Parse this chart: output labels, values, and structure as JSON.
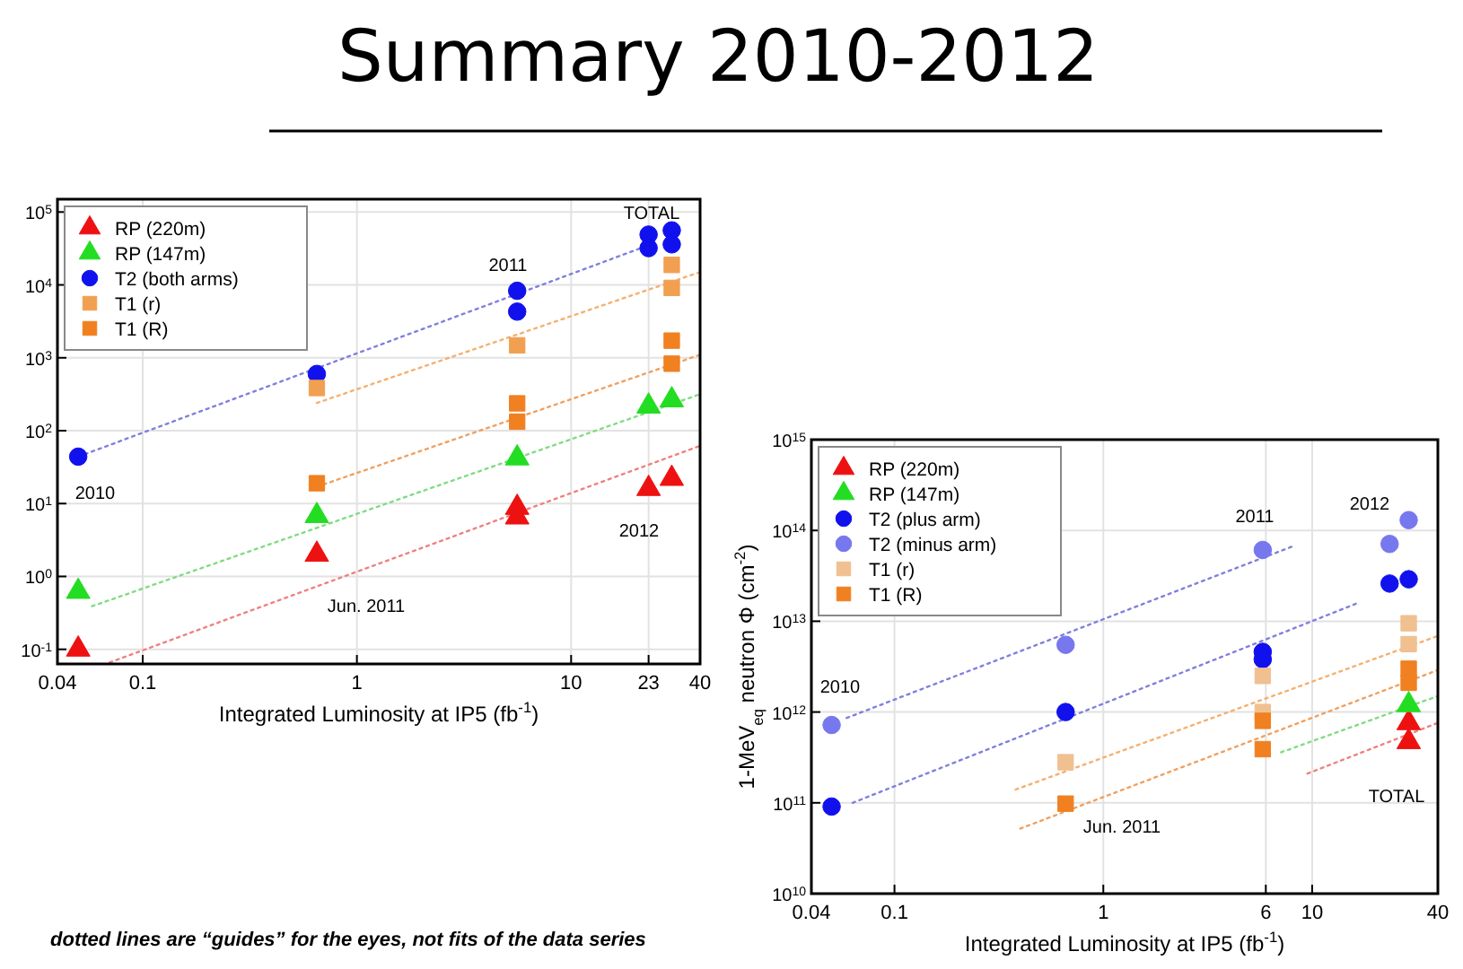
{
  "chart_data": [
    {
      "type": "scatter",
      "title": "Summary 2010-2012",
      "xlabel": "Integrated Luminosity at IP5 (fb$^{-1}$)",
      "log": "xy",
      "grid": true,
      "legend": "top left",
      "xlim": [
        0.04,
        40
      ],
      "xticks": [
        0.04,
        0.1,
        1,
        10,
        23,
        40
      ],
      "ylim": [
        0.063,
        150000
      ],
      "yticks": [
        {
          "value": 0.1,
          "label": "10$^{-1}$"
        },
        {
          "value": 1,
          "label": "10$^{0}$"
        },
        {
          "value": 10,
          "label": "10$^{1}$"
        },
        {
          "value": 100,
          "label": "10$^{2}$"
        },
        {
          "value": 1000,
          "label": "10$^{3}$"
        },
        {
          "value": 10000,
          "label": "10$^{4}$"
        },
        {
          "value": 100000,
          "label": "10$^{5}$"
        }
      ],
      "series": [
        {
          "name": "RP (220m)",
          "type": "scatter",
          "marker": "triangle",
          "color": "#ee1111",
          "x": [
            0.05,
            0.65,
            5.6,
            5.6,
            23,
            29.5
          ],
          "values": [
            0.1,
            2,
            8.8,
            6.5,
            16,
            22
          ]
        },
        {
          "name": "RP (147m)",
          "type": "scatter",
          "marker": "triangle",
          "color": "#22dd22",
          "x": [
            0.05,
            0.65,
            5.6,
            23,
            29.5
          ],
          "values": [
            0.62,
            6.8,
            42,
            216,
            263
          ]
        },
        {
          "name": "T2 (both arms)",
          "type": "scatter",
          "marker": "circle",
          "color": "#1111ee",
          "x": [
            0.05,
            0.65,
            5.6,
            5.6,
            23,
            23,
            29.5,
            29.5
          ],
          "values": [
            44,
            600,
            8300,
            4300,
            49000,
            32000,
            56000,
            36000
          ]
        },
        {
          "name": "T1 (r)",
          "type": "scatter",
          "marker": "square",
          "color": "#f0a050",
          "x": [
            0.65,
            5.6,
            29.5,
            29.5
          ],
          "values": [
            385,
            1480,
            18800,
            9100
          ]
        },
        {
          "name": "T1 (R)",
          "type": "scatter",
          "marker": "square",
          "color": "#f08020",
          "x": [
            0.65,
            5.6,
            5.6,
            29.5,
            29.5
          ],
          "values": [
            19,
            237,
            133,
            1720,
            830
          ]
        },
        {
          "type": "line",
          "line_style": "dotted",
          "color": "#8080dd",
          "x": [
            0.05,
            23
          ],
          "values": [
            44,
            35000
          ]
        },
        {
          "type": "line",
          "line_style": "dotted",
          "color": "#f5b070",
          "x": [
            0.65,
            40
          ],
          "values": [
            240,
            15000
          ]
        },
        {
          "type": "line",
          "line_style": "dotted",
          "color": "#f0a060",
          "x": [
            0.65,
            40
          ],
          "values": [
            17,
            1100
          ]
        },
        {
          "type": "line",
          "line_style": "dotted",
          "color": "#80dd80",
          "x": [
            0.058,
            40
          ],
          "values": [
            0.39,
            316
          ]
        },
        {
          "type": "line",
          "line_style": "dotted",
          "color": "#f08080",
          "x": [
            0.07,
            40
          ],
          "values": [
            0.066,
            62
          ]
        }
      ],
      "annotations": [
        "2010",
        "2011",
        "TOTAL",
        "2012",
        "Jun. 2011",
        "dotted lines are “guides” for the eyes, not fits of the data series"
      ]
    },
    {
      "type": "scatter",
      "xlabel": "Integrated Luminosity at IP5 (fb$^{-1}$)",
      "ylabel": "1-MeV$_{eq}$ neutron Φ (cm$^{-2}$)",
      "log": "xy",
      "grid": true,
      "legend": "top left",
      "xlim": [
        0.04,
        40
      ],
      "xticks": [
        0.04,
        0.1,
        1,
        6,
        10,
        40
      ],
      "ylim": [
        10000000000.0,
        1000000000000000.0
      ],
      "yticks": [
        {
          "value": 10000000000.0,
          "label": "10$^{10}$"
        },
        {
          "value": 100000000000.0,
          "label": "10$^{11}$"
        },
        {
          "value": 1000000000000.0,
          "label": "10$^{12}$"
        },
        {
          "value": 10000000000000.0,
          "label": "10$^{13}$"
        },
        {
          "value": 100000000000000.0,
          "label": "10$^{14}$"
        },
        {
          "value": 1000000000000000.0,
          "label": "10$^{15}$"
        }
      ],
      "series": [
        {
          "name": "RP (220m)",
          "type": "scatter",
          "marker": "triangle",
          "color": "#ee1111",
          "x": [
            29,
            29
          ],
          "values": [
            760000000000.0,
            470000000000.0
          ]
        },
        {
          "name": "RP (147m)",
          "type": "scatter",
          "marker": "triangle",
          "color": "#22dd22",
          "x": [
            29
          ],
          "values": [
            1200000000000.0
          ]
        },
        {
          "name": "T2 (plus arm)",
          "type": "scatter",
          "marker": "circle",
          "color": "#1111ee",
          "x": [
            0.05,
            0.66,
            5.8,
            5.8,
            23.5,
            29
          ],
          "values": [
            91000000000.0,
            1000000000000.0,
            4600000000000.0,
            3800000000000.0,
            26000000000000.0,
            29000000000000.0
          ]
        },
        {
          "name": "T2 (minus arm)",
          "type": "scatter",
          "marker": "circle",
          "color": "#7777ee",
          "x": [
            0.05,
            0.66,
            5.8,
            23.5,
            29
          ],
          "values": [
            720000000000.0,
            5500000000000.0,
            61000000000000.0,
            71000000000000.0,
            130000000000000.0
          ]
        },
        {
          "name": "T1 (r)",
          "type": "scatter",
          "marker": "square",
          "color": "#f0c090",
          "x": [
            0.66,
            5.8,
            5.8,
            29,
            29
          ],
          "values": [
            280000000000.0,
            2500000000000.0,
            1000000000000.0,
            9500000000000.0,
            5600000000000.0
          ]
        },
        {
          "name": "T1 (R)",
          "type": "scatter",
          "marker": "square",
          "color": "#f08020",
          "x": [
            0.66,
            5.8,
            5.8,
            29,
            29
          ],
          "values": [
            98000000000.0,
            800000000000.0,
            390000000000.0,
            3000000000000.0,
            2100000000000.0
          ]
        },
        {
          "type": "line",
          "line_style": "dotted",
          "color": "#8080dd",
          "x": [
            0.059,
            8.1
          ],
          "values": [
            860000000000.0,
            67000000000000.0
          ]
        },
        {
          "type": "line",
          "line_style": "dotted",
          "color": "#8080dd",
          "x": [
            0.063,
            16.7
          ],
          "values": [
            100000000000.0,
            16000000000000.0
          ]
        },
        {
          "type": "line",
          "line_style": "dotted",
          "color": "#f5b070",
          "x": [
            0.38,
            40
          ],
          "values": [
            140000000000.0,
            6900000000000.0
          ]
        },
        {
          "type": "line",
          "line_style": "dotted",
          "color": "#f0a060",
          "x": [
            0.4,
            40
          ],
          "values": [
            52000000000.0,
            2900000000000.0
          ]
        },
        {
          "type": "line",
          "line_style": "dotted",
          "color": "#80dd80",
          "x": [
            7.1,
            40
          ],
          "values": [
            360000000000.0,
            1500000000000.0
          ]
        },
        {
          "type": "line",
          "line_style": "dotted",
          "color": "#f08080",
          "x": [
            9.5,
            40
          ],
          "values": [
            210000000000.0,
            760000000000.0
          ]
        }
      ],
      "annotations": [
        "2010",
        "2011",
        "2012",
        "TOTAL",
        "Jun. 2011"
      ]
    }
  ]
}
